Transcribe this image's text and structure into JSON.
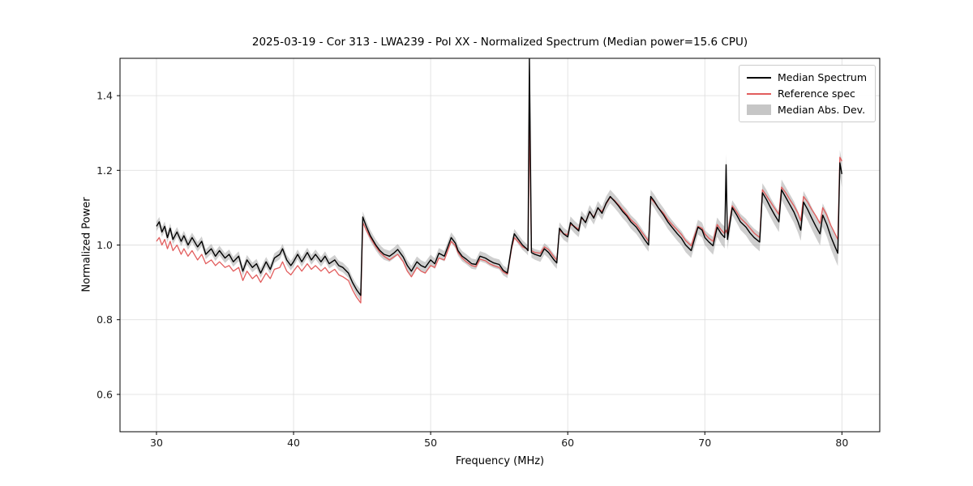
{
  "title": "2025-03-19 - Cor 313 - LWA239 - Pol XX - Normalized Spectrum (Median power=15.6 CPU)",
  "colors": {
    "median_line": "#000000",
    "reference_line": "#e25d5d",
    "band_fill": "rgba(128,128,128,0.38)",
    "legend_patch": "rgba(128,128,128,0.45)",
    "grid": "#e0e0e0",
    "spine": "#000000",
    "tick_text": "#1a1a1a"
  },
  "chart_data": {
    "type": "line",
    "title": "2025-03-19 - Cor 313 - LWA239 - Pol XX - Normalized Spectrum (Median power=15.6 CPU)",
    "xlabel": "Frequency (MHz)",
    "ylabel": "Normalized Power",
    "xlim": [
      27.34,
      82.76
    ],
    "ylim": [
      0.5,
      1.5
    ],
    "xticks": [
      30,
      40,
      50,
      60,
      70,
      80
    ],
    "yticks": [
      0.6,
      0.8,
      1.0,
      1.2,
      1.4
    ],
    "grid": true,
    "legend": {
      "position": "upper right",
      "entries": [
        {
          "label": "Median Spectrum",
          "color": "#000000",
          "type": "line"
        },
        {
          "label": "Reference spec",
          "color": "#e25d5d",
          "type": "line"
        },
        {
          "label": "Median Abs. Dev.",
          "color": "rgba(128,128,128,0.45)",
          "type": "patch"
        }
      ]
    },
    "series_format": [
      "frequency_mhz",
      "median_spectrum",
      "reference_spec"
    ],
    "points": [
      [
        30.0,
        1.05,
        1.01
      ],
      [
        30.2,
        1.062,
        1.02
      ],
      [
        30.4,
        1.035,
        1.0
      ],
      [
        30.6,
        1.05,
        1.015
      ],
      [
        30.8,
        1.02,
        0.99
      ],
      [
        31.0,
        1.045,
        1.01
      ],
      [
        31.2,
        1.015,
        0.985
      ],
      [
        31.5,
        1.035,
        1.0
      ],
      [
        31.8,
        1.01,
        0.975
      ],
      [
        32.0,
        1.025,
        0.99
      ],
      [
        32.3,
        1.0,
        0.97
      ],
      [
        32.6,
        1.02,
        0.985
      ],
      [
        33.0,
        0.995,
        0.96
      ],
      [
        33.3,
        1.01,
        0.975
      ],
      [
        33.6,
        0.975,
        0.95
      ],
      [
        34.0,
        0.99,
        0.96
      ],
      [
        34.3,
        0.97,
        0.945
      ],
      [
        34.6,
        0.985,
        0.955
      ],
      [
        35.0,
        0.965,
        0.94
      ],
      [
        35.3,
        0.975,
        0.945
      ],
      [
        35.6,
        0.955,
        0.93
      ],
      [
        36.0,
        0.97,
        0.94
      ],
      [
        36.3,
        0.93,
        0.905
      ],
      [
        36.6,
        0.96,
        0.93
      ],
      [
        37.0,
        0.94,
        0.91
      ],
      [
        37.3,
        0.95,
        0.92
      ],
      [
        37.6,
        0.925,
        0.9
      ],
      [
        38.0,
        0.955,
        0.925
      ],
      [
        38.3,
        0.935,
        0.91
      ],
      [
        38.6,
        0.965,
        0.935
      ],
      [
        39.0,
        0.975,
        0.94
      ],
      [
        39.2,
        0.99,
        0.955
      ],
      [
        39.5,
        0.96,
        0.93
      ],
      [
        39.8,
        0.945,
        0.92
      ],
      [
        40.0,
        0.955,
        0.93
      ],
      [
        40.3,
        0.975,
        0.945
      ],
      [
        40.6,
        0.955,
        0.93
      ],
      [
        41.0,
        0.98,
        0.95
      ],
      [
        41.3,
        0.96,
        0.935
      ],
      [
        41.6,
        0.975,
        0.945
      ],
      [
        42.0,
        0.955,
        0.93
      ],
      [
        42.3,
        0.97,
        0.94
      ],
      [
        42.6,
        0.95,
        0.925
      ],
      [
        43.0,
        0.96,
        0.935
      ],
      [
        43.3,
        0.945,
        0.92
      ],
      [
        43.6,
        0.94,
        0.915
      ],
      [
        44.0,
        0.925,
        0.905
      ],
      [
        44.3,
        0.9,
        0.88
      ],
      [
        44.6,
        0.88,
        0.86
      ],
      [
        44.9,
        0.865,
        0.845
      ],
      [
        45.05,
        1.075,
        1.06
      ],
      [
        45.3,
        1.05,
        1.04
      ],
      [
        45.6,
        1.025,
        1.02
      ],
      [
        46.0,
        1.0,
        0.995
      ],
      [
        46.3,
        0.985,
        0.98
      ],
      [
        46.6,
        0.975,
        0.97
      ],
      [
        47.0,
        0.97,
        0.96
      ],
      [
        47.3,
        0.978,
        0.968
      ],
      [
        47.6,
        0.988,
        0.975
      ],
      [
        48.0,
        0.968,
        0.955
      ],
      [
        48.3,
        0.945,
        0.93
      ],
      [
        48.6,
        0.93,
        0.915
      ],
      [
        49.0,
        0.955,
        0.94
      ],
      [
        49.3,
        0.945,
        0.93
      ],
      [
        49.6,
        0.94,
        0.925
      ],
      [
        50.0,
        0.96,
        0.945
      ],
      [
        50.3,
        0.95,
        0.94
      ],
      [
        50.6,
        0.978,
        0.965
      ],
      [
        51.0,
        0.97,
        0.96
      ],
      [
        51.3,
        1.0,
        0.99
      ],
      [
        51.5,
        1.02,
        1.01
      ],
      [
        51.8,
        1.005,
        0.998
      ],
      [
        52.0,
        0.985,
        0.98
      ],
      [
        52.3,
        0.97,
        0.965
      ],
      [
        52.6,
        0.962,
        0.955
      ],
      [
        53.0,
        0.95,
        0.945
      ],
      [
        53.3,
        0.948,
        0.942
      ],
      [
        53.6,
        0.97,
        0.962
      ],
      [
        54.0,
        0.965,
        0.958
      ],
      [
        54.3,
        0.958,
        0.95
      ],
      [
        54.6,
        0.952,
        0.945
      ],
      [
        55.0,
        0.948,
        0.94
      ],
      [
        55.3,
        0.932,
        0.928
      ],
      [
        55.6,
        0.925,
        0.922
      ],
      [
        55.9,
        0.995,
        0.99
      ],
      [
        56.1,
        1.03,
        1.02
      ],
      [
        56.4,
        1.015,
        1.008
      ],
      [
        56.7,
        1.0,
        0.995
      ],
      [
        57.0,
        0.99,
        0.99
      ],
      [
        57.1,
        0.985,
        0.985
      ],
      [
        57.2,
        1.5,
        1.34
      ],
      [
        57.35,
        0.98,
        0.985
      ],
      [
        57.6,
        0.975,
        0.98
      ],
      [
        58.0,
        0.97,
        0.978
      ],
      [
        58.3,
        0.99,
        0.995
      ],
      [
        58.6,
        0.98,
        0.988
      ],
      [
        59.0,
        0.96,
        0.968
      ],
      [
        59.2,
        0.952,
        0.96
      ],
      [
        59.4,
        1.045,
        1.04
      ],
      [
        59.7,
        1.03,
        1.03
      ],
      [
        60.0,
        1.022,
        1.028
      ],
      [
        60.2,
        1.06,
        1.055
      ],
      [
        60.5,
        1.048,
        1.05
      ],
      [
        60.8,
        1.038,
        1.042
      ],
      [
        61.0,
        1.075,
        1.072
      ],
      [
        61.3,
        1.06,
        1.062
      ],
      [
        61.6,
        1.09,
        1.088
      ],
      [
        61.9,
        1.072,
        1.075
      ],
      [
        62.2,
        1.1,
        1.098
      ],
      [
        62.5,
        1.085,
        1.09
      ],
      [
        62.8,
        1.112,
        1.11
      ],
      [
        63.1,
        1.13,
        1.128
      ],
      [
        63.4,
        1.118,
        1.12
      ],
      [
        63.7,
        1.105,
        1.108
      ],
      [
        64.0,
        1.09,
        1.095
      ],
      [
        64.3,
        1.078,
        1.082
      ],
      [
        64.6,
        1.062,
        1.068
      ],
      [
        65.0,
        1.048,
        1.055
      ],
      [
        65.3,
        1.032,
        1.04
      ],
      [
        65.6,
        1.015,
        1.025
      ],
      [
        65.9,
        1.0,
        1.01
      ],
      [
        66.05,
        1.13,
        1.125
      ],
      [
        66.3,
        1.118,
        1.115
      ],
      [
        66.6,
        1.1,
        1.1
      ],
      [
        67.0,
        1.08,
        1.085
      ],
      [
        67.3,
        1.062,
        1.068
      ],
      [
        67.6,
        1.048,
        1.055
      ],
      [
        68.0,
        1.03,
        1.04
      ],
      [
        68.3,
        1.018,
        1.028
      ],
      [
        68.6,
        1.0,
        1.012
      ],
      [
        69.0,
        0.985,
        0.998
      ],
      [
        69.2,
        1.01,
        1.02
      ],
      [
        69.5,
        1.048,
        1.05
      ],
      [
        69.8,
        1.04,
        1.045
      ],
      [
        70.0,
        1.02,
        1.03
      ],
      [
        70.3,
        1.008,
        1.018
      ],
      [
        70.6,
        0.998,
        1.01
      ],
      [
        70.9,
        1.048,
        1.055
      ],
      [
        71.2,
        1.03,
        1.04
      ],
      [
        71.45,
        1.02,
        1.03
      ],
      [
        71.55,
        1.215,
        1.04
      ],
      [
        71.65,
        1.015,
        1.028
      ],
      [
        72.0,
        1.1,
        1.105
      ],
      [
        72.3,
        1.082,
        1.09
      ],
      [
        72.6,
        1.062,
        1.072
      ],
      [
        73.0,
        1.048,
        1.058
      ],
      [
        73.3,
        1.032,
        1.045
      ],
      [
        73.6,
        1.02,
        1.032
      ],
      [
        74.0,
        1.008,
        1.02
      ],
      [
        74.2,
        1.14,
        1.148
      ],
      [
        74.5,
        1.122,
        1.132
      ],
      [
        74.8,
        1.1,
        1.115
      ],
      [
        75.1,
        1.08,
        1.098
      ],
      [
        75.4,
        1.062,
        1.082
      ],
      [
        75.6,
        1.148,
        1.155
      ],
      [
        75.9,
        1.128,
        1.14
      ],
      [
        76.2,
        1.108,
        1.122
      ],
      [
        76.5,
        1.088,
        1.105
      ],
      [
        76.8,
        1.062,
        1.085
      ],
      [
        77.0,
        1.04,
        1.065
      ],
      [
        77.2,
        1.115,
        1.13
      ],
      [
        77.5,
        1.095,
        1.115
      ],
      [
        77.8,
        1.072,
        1.095
      ],
      [
        78.1,
        1.05,
        1.078
      ],
      [
        78.4,
        1.03,
        1.058
      ],
      [
        78.6,
        1.08,
        1.1
      ],
      [
        78.9,
        1.055,
        1.08
      ],
      [
        79.2,
        1.022,
        1.052
      ],
      [
        79.5,
        0.995,
        1.03
      ],
      [
        79.7,
        0.978,
        1.015
      ],
      [
        79.85,
        1.22,
        1.235
      ],
      [
        80.0,
        1.19,
        1.225
      ]
    ],
    "mad_halfwidth_points": [
      [
        30,
        0.013
      ],
      [
        44,
        0.013
      ],
      [
        45,
        0.015
      ],
      [
        57,
        0.013
      ],
      [
        58,
        0.015
      ],
      [
        63,
        0.018
      ],
      [
        66,
        0.018
      ],
      [
        70,
        0.02
      ],
      [
        71.55,
        0.03
      ],
      [
        72,
        0.02
      ],
      [
        74,
        0.025
      ],
      [
        76,
        0.028
      ],
      [
        78,
        0.03
      ],
      [
        80,
        0.035
      ]
    ]
  }
}
